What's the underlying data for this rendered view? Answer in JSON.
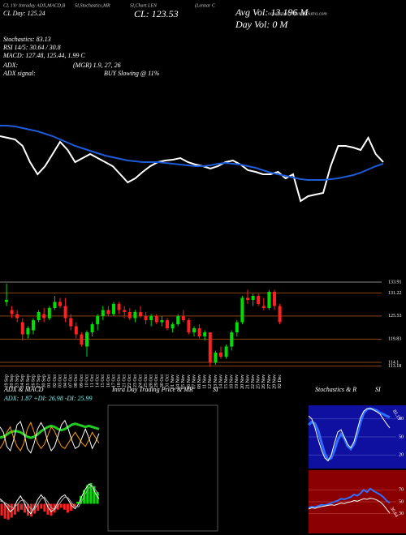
{
  "header": {
    "line1": "CL 1Yr Intraday ADX,MACD,B",
    "line1b": "SI,Stochastics,MR",
    "line1c": "SI,Chart LEN",
    "line1d": "(Lennar C",
    "line1e": "orporation) MunafaSutra.com",
    "day": "CL Day: 125.24",
    "cl": "CL: 123.53",
    "avg_vol": "Avg Vol: 13.196  M",
    "day_vol": "Day Vol: 0   M",
    "stoch": "Stochastics: 83.13",
    "rsi": "RSI 14/5: 30.64 / 30.8",
    "macd": "MACD: 127.48, 125.44, 1.99 C",
    "adx": "ADX:",
    "adx_val": "(MGR) 1.9, 27, 26",
    "adx_signal": "ADX  signal:",
    "signal": "BUY Slowing @ 11%"
  },
  "price_chart": {
    "type": "line",
    "ylim": [
      0,
      120
    ],
    "series": [
      {
        "color": "#ffffff",
        "values": [
          92,
          90,
          88,
          80,
          60,
          45,
          55,
          70,
          85,
          75,
          60,
          65,
          70,
          65,
          60,
          55,
          45,
          35,
          40,
          48,
          55,
          60,
          62,
          63,
          65,
          60,
          57,
          55,
          52,
          55,
          60,
          62,
          57,
          50,
          48,
          45,
          45,
          48,
          40,
          45,
          12,
          18,
          20,
          22,
          55,
          80,
          80,
          78,
          75,
          90,
          70,
          60
        ]
      },
      {
        "color": "#1e5bd8",
        "values": [
          105,
          105,
          104,
          102,
          100,
          98,
          95,
          92,
          88,
          84,
          80,
          77,
          74,
          71,
          68,
          66,
          64,
          62,
          61,
          60,
          60,
          60,
          59,
          58,
          57,
          56,
          55,
          55,
          56,
          58,
          59,
          58,
          57,
          55,
          53,
          50,
          47,
          45,
          43,
          41,
          39,
          38,
          38,
          38,
          39,
          40,
          42,
          44,
          47,
          51,
          55,
          58
        ]
      }
    ]
  },
  "candle_chart": {
    "type": "candlestick",
    "ylim": [
      111.5,
      135.5
    ],
    "up_color": "#00dd00",
    "down_color": "#ff2020",
    "level_color": "#8b4513",
    "levels": [
      133.91,
      131.22,
      125.53,
      119.83,
      114.1,
      113.18
    ],
    "dates": [
      "19 Sep",
      "20 Sep",
      "23 Sep",
      "24 Sep",
      "25 Sep",
      "26 Sep",
      "27 Sep",
      "30 Sep",
      "01 Oct",
      "02 Oct",
      "03 Oct",
      "04 Oct",
      "07 Oct",
      "08 Oct",
      "09 Oct",
      "10 Oct",
      "11 Oct",
      "14 Oct",
      "15 Oct",
      "16 Oct",
      "17 Oct",
      "18 Oct",
      "21 Oct",
      "22 Oct",
      "23 Oct",
      "24 Oct",
      "25 Oct",
      "28 Oct",
      "29 Oct",
      "30 Oct",
      "31 Oct",
      "01 Nov",
      "04 Nov",
      "05 Nov",
      "06 Nov",
      "07 Nov",
      "08 Nov",
      "11 Nov",
      "12 Nov",
      "13 Nov",
      "14 Nov",
      "15 Nov",
      "18 Nov",
      "19 Nov",
      "20 Nov",
      "21 Nov",
      "22 Nov",
      "25 Nov",
      "26 Nov",
      "27 Nov",
      "29 Nov",
      "02 Dec"
    ],
    "open": [
      129,
      127,
      126,
      124,
      121,
      122,
      124.5,
      126,
      125,
      127.5,
      129,
      128,
      125,
      123,
      121,
      118,
      121.5,
      123.5,
      125.5,
      127,
      126,
      128.5,
      127,
      126.5,
      125,
      126.5,
      125.5,
      124.5,
      125.5,
      124,
      124.5,
      122.5,
      123.5,
      125.5,
      124.5,
      121.5,
      122.5,
      120.5,
      121.5,
      114,
      116.5,
      115.5,
      118,
      121.5,
      124,
      130,
      129.5,
      130.5,
      128,
      127.5,
      131.5,
      128
    ],
    "high": [
      133.5,
      128,
      127,
      125,
      123,
      125,
      127,
      127.5,
      128,
      130.5,
      130,
      130,
      126,
      124,
      121.5,
      122,
      124,
      126,
      128,
      128,
      129,
      129,
      128,
      127.5,
      127,
      128,
      126.5,
      126,
      126,
      125.5,
      125,
      124,
      126,
      127,
      125,
      123,
      123.5,
      122,
      121.5,
      117,
      118,
      118.5,
      122,
      124.5,
      130.5,
      132,
      131,
      131,
      130,
      132,
      132,
      128.5
    ],
    "low": [
      128,
      125,
      124,
      119.5,
      120,
      121,
      124,
      124,
      124.5,
      127,
      127.5,
      124,
      122,
      120,
      118,
      115.5,
      120.5,
      122,
      124.5,
      125.5,
      125.5,
      126,
      125,
      124.5,
      124,
      125,
      123.5,
      123,
      123.5,
      123,
      122,
      121.5,
      123,
      124,
      121,
      120.5,
      120,
      119.5,
      113,
      113.5,
      115,
      115,
      117,
      120.5,
      123.5,
      128.5,
      128,
      128,
      127,
      127,
      127,
      123.5
    ],
    "close": [
      129.5,
      126,
      125,
      121,
      122.5,
      124.5,
      126.5,
      125,
      127.5,
      129,
      128,
      125,
      123,
      121,
      118.5,
      121.5,
      123.5,
      125.5,
      127,
      126,
      128.5,
      127,
      126.5,
      125,
      126.5,
      125.5,
      124.5,
      125.5,
      124,
      124.5,
      122.5,
      123.5,
      125.5,
      124.5,
      121.5,
      122.5,
      120.5,
      121.5,
      114,
      116.5,
      115.5,
      118,
      121.5,
      124,
      130,
      129.5,
      130.5,
      128.5,
      127.5,
      131.5,
      128,
      124
    ]
  },
  "adx_panel": {
    "title": "ADX  & MACD",
    "stats": "ADX: 1.87  +DI: 26.98  -DI: 25.99",
    "adx_ylim": [
      0,
      60
    ],
    "adx_series": [
      {
        "color": "#22cc22",
        "width": 3,
        "values": [
          30,
          31,
          33,
          35,
          36,
          36,
          35,
          33,
          31,
          30,
          31,
          33,
          36,
          38,
          40,
          41,
          40,
          38,
          37,
          38,
          40,
          42,
          43,
          42,
          41,
          40,
          41,
          40,
          39,
          38
        ]
      },
      {
        "color": "#ff9900",
        "width": 1,
        "values": [
          20,
          25,
          35,
          40,
          30,
          22,
          18,
          25,
          38,
          44,
          35,
          25,
          20,
          24,
          32,
          40,
          36,
          28,
          22,
          20,
          25,
          30,
          35,
          30,
          25,
          22,
          28,
          35,
          30,
          25
        ]
      },
      {
        "color": "#ffffff",
        "width": 1,
        "values": [
          40,
          35,
          22,
          18,
          28,
          42,
          45,
          35,
          20,
          16,
          25,
          38,
          44,
          38,
          26,
          18,
          22,
          32,
          42,
          46,
          38,
          28,
          20,
          22,
          30,
          38,
          30,
          20,
          26,
          34
        ]
      }
    ],
    "macd_ylim": [
      -3,
      3
    ],
    "hist_up": "#00dd00",
    "hist_down": "#ff2020",
    "macd_hist": [
      -1.2,
      -1.5,
      -1.6,
      -1.4,
      -1.1,
      -0.8,
      -0.6,
      -0.9,
      -1.2,
      -1.3,
      -1.0,
      -0.7,
      -0.5,
      -0.8,
      -1.1,
      -1.2,
      -0.9,
      -0.6,
      -0.4,
      -0.6,
      -0.9,
      -0.7,
      -0.3,
      0.2,
      0.8,
      1.4,
      1.9,
      2.1,
      1.8,
      1.2
    ],
    "macd_series": [
      {
        "color": "#ffffff",
        "width": 1,
        "values": [
          0.5,
          0.2,
          -0.3,
          -0.8,
          -0.5,
          0.3,
          0.8,
          0.2,
          -0.6,
          -1.0,
          -0.4,
          0.4,
          0.9,
          0.5,
          -0.3,
          -0.8,
          -0.5,
          0.2,
          0.7,
          0.9,
          0.4,
          -0.2,
          -0.5,
          0.0,
          0.8,
          1.5,
          2.0,
          1.8,
          1.0,
          0.5
        ]
      },
      {
        "color": "#aaaaaa",
        "width": 1,
        "values": [
          0.3,
          0.2,
          0.0,
          -0.3,
          -0.4,
          -0.1,
          0.3,
          0.4,
          0.0,
          -0.5,
          -0.6,
          -0.1,
          0.5,
          0.7,
          0.2,
          -0.4,
          -0.6,
          -0.2,
          0.3,
          0.7,
          0.6,
          0.1,
          -0.3,
          -0.3,
          0.3,
          1.0,
          1.6,
          1.8,
          1.4,
          0.9
        ]
      }
    ]
  },
  "intraday_panel": {
    "title": "Intra Day Trading Price  & MR",
    "title2": "SI"
  },
  "stoch_panel": {
    "title": "Stochastics & R",
    "title2": "SI",
    "stoch_bg": "#1010a0",
    "stoch_ylim": [
      0,
      100
    ],
    "stoch_ticks": [
      80,
      50,
      20
    ],
    "stoch_label": "83.13",
    "stoch_series": [
      {
        "color": "#2f6fff",
        "width": 3,
        "values": [
          70,
          75,
          72,
          60,
          40,
          22,
          12,
          15,
          28,
          45,
          55,
          48,
          35,
          30,
          38,
          55,
          75,
          90,
          96,
          97,
          96,
          94,
          90,
          88,
          85,
          83
        ]
      },
      {
        "color": "#ffffff",
        "width": 1,
        "values": [
          85,
          80,
          65,
          45,
          28,
          15,
          10,
          20,
          40,
          58,
          62,
          50,
          38,
          32,
          42,
          62,
          82,
          93,
          97,
          98,
          95,
          92,
          88,
          80,
          72,
          65
        ]
      }
    ],
    "rsi_bg": "#8b0000",
    "rsi_ylim": [
      0,
      100
    ],
    "rsi_ticks": [
      70,
      50,
      30
    ],
    "rsi_label": "30.64",
    "rsi_series": [
      {
        "color": "#2f6fff",
        "width": 2,
        "values": [
          40,
          42,
          41,
          43,
          45,
          44,
          46,
          48,
          50,
          52,
          55,
          54,
          56,
          58,
          62,
          60,
          64,
          70,
          66,
          72,
          68,
          65,
          62,
          58,
          52,
          48
        ]
      },
      {
        "color": "#ffffff",
        "width": 1,
        "values": [
          38,
          40,
          39,
          41,
          42,
          43,
          44,
          45,
          44,
          46,
          48,
          47,
          49,
          50,
          52,
          51,
          53,
          55,
          54,
          56,
          55,
          53,
          50,
          45,
          38,
          31
        ]
      }
    ]
  }
}
